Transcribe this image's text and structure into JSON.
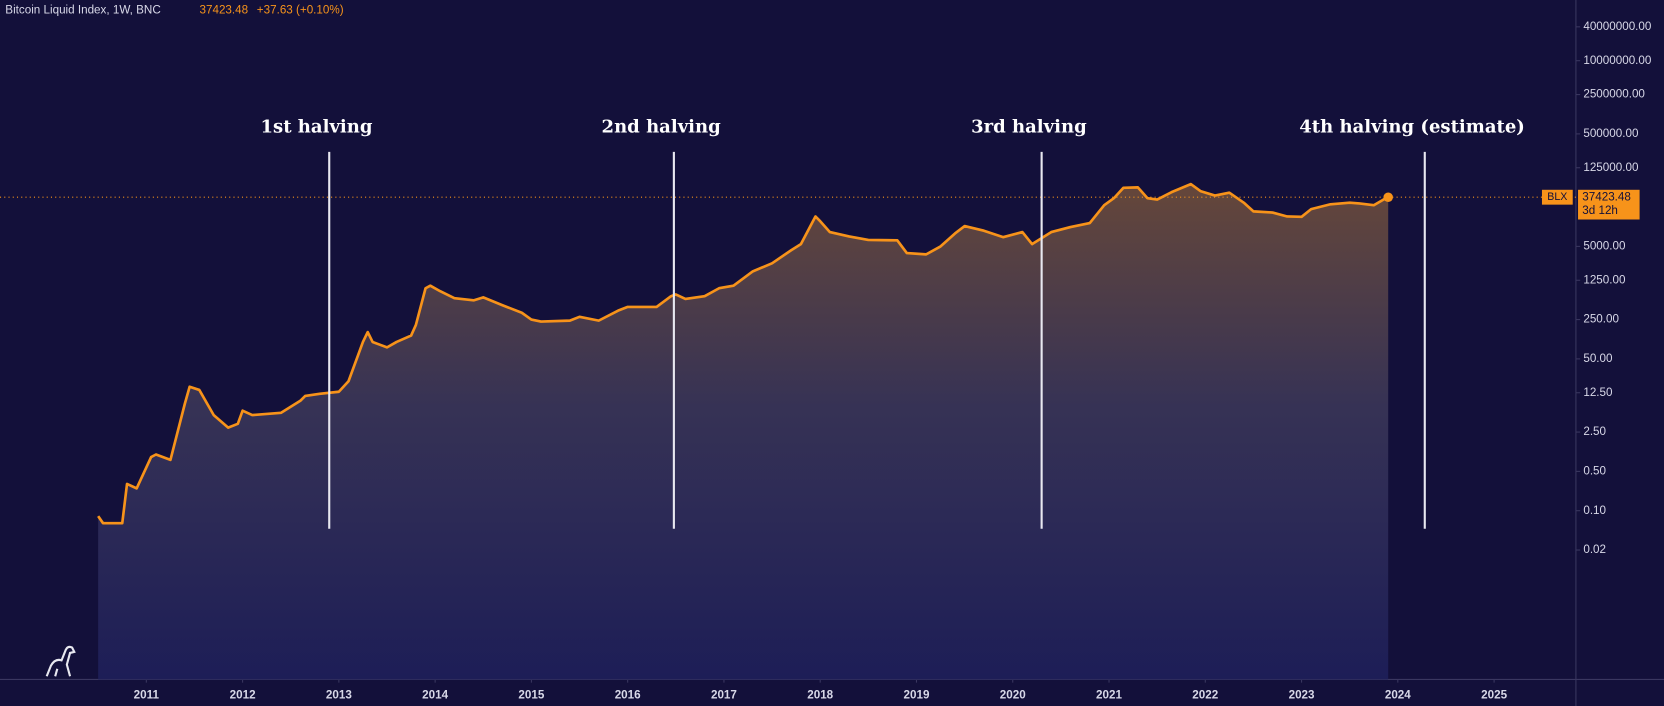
{
  "chart_data": {
    "type": "line",
    "title": "Bitcoin Liquid Index, 1W, BNC",
    "change": "+37.63 (+0.10%)",
    "countdown": "3d 12h",
    "log_scale": true,
    "grid": false,
    "xlim": [
      2009.48,
      2025.85
    ],
    "xticks": [
      2011,
      2012,
      2013,
      2014,
      2015,
      2016,
      2017,
      2018,
      2019,
      2020,
      2021,
      2022,
      2023,
      2024,
      2025
    ],
    "ylim": [
      0.0001,
      120000000
    ],
    "yticks": [
      0.02,
      {
        "value": 0.1,
        "label": "0.10"
      },
      {
        "value": 0.5,
        "label": "0.50"
      },
      {
        "value": 2.5,
        "label": "2.50"
      },
      {
        "value": 12.5,
        "label": "12.50"
      },
      {
        "value": 50,
        "label": "50.00"
      },
      {
        "value": 250,
        "label": "250.00"
      },
      {
        "value": 1250,
        "label": "1250.00"
      },
      {
        "value": 5000,
        "label": "5000.00"
      },
      {
        "value": 125000,
        "label": "125000.00"
      },
      {
        "value": 500000,
        "label": "500000.00"
      },
      {
        "value": 2500000,
        "label": "2500000.00"
      },
      {
        "value": 10000000,
        "label": "10000000.00"
      },
      {
        "value": 40000000,
        "label": "40000000.00"
      }
    ],
    "x": [
      2010.5,
      2010.55,
      2010.75,
      2010.8,
      2010.9,
      2011.05,
      2011.1,
      2011.25,
      2011.4,
      2011.45,
      2011.55,
      2011.7,
      2011.85,
      2011.95,
      2012.0,
      2012.1,
      2012.4,
      2012.6,
      2012.65,
      2012.8,
      2013.0,
      2013.1,
      2013.25,
      2013.3,
      2013.35,
      2013.5,
      2013.6,
      2013.75,
      2013.8,
      2013.9,
      2013.95,
      2014.05,
      2014.2,
      2014.4,
      2014.5,
      2014.7,
      2014.9,
      2015.0,
      2015.1,
      2015.4,
      2015.5,
      2015.7,
      2015.9,
      2016.0,
      2016.3,
      2016.45,
      2016.5,
      2016.6,
      2016.8,
      2016.95,
      2017.1,
      2017.3,
      2017.5,
      2017.7,
      2017.8,
      2017.95,
      2018.0,
      2018.1,
      2018.3,
      2018.5,
      2018.8,
      2018.9,
      2019.1,
      2019.25,
      2019.4,
      2019.5,
      2019.7,
      2019.9,
      2020.1,
      2020.2,
      2020.4,
      2020.6,
      2020.8,
      2020.95,
      2021.05,
      2021.15,
      2021.3,
      2021.4,
      2021.5,
      2021.65,
      2021.85,
      2021.95,
      2022.1,
      2022.25,
      2022.4,
      2022.5,
      2022.7,
      2022.85,
      2023.0,
      2023.1,
      2023.3,
      2023.5,
      2023.6,
      2023.75,
      2023.85,
      2023.9
    ],
    "series": [
      {
        "name": "BLX",
        "color": "#f7931a",
        "values": [
          0.08,
          0.06,
          0.06,
          0.3,
          0.25,
          0.9,
          1.0,
          0.8,
          8,
          16,
          14,
          5,
          3,
          3.5,
          6,
          5,
          5.5,
          9,
          11,
          12,
          13,
          20,
          100,
          150,
          100,
          80,
          100,
          130,
          200,
          900,
          1000,
          800,
          600,
          550,
          620,
          450,
          330,
          250,
          230,
          240,
          280,
          240,
          360,
          420,
          420,
          650,
          700,
          580,
          650,
          900,
          1000,
          1800,
          2500,
          4300,
          5500,
          17000,
          14000,
          9000,
          7500,
          6500,
          6400,
          3800,
          3600,
          5000,
          8500,
          11500,
          9500,
          7300,
          9000,
          5500,
          9000,
          11000,
          13000,
          27000,
          36000,
          55000,
          56000,
          36000,
          34000,
          46000,
          64000,
          48000,
          40000,
          45000,
          30000,
          21000,
          20000,
          17000,
          16800,
          23000,
          28000,
          30000,
          29000,
          27000,
          34000,
          37423.48
        ]
      }
    ],
    "annotations": [
      {
        "text": "1st halving",
        "x": 2012.9
      },
      {
        "text": "2nd halving",
        "x": 2016.48
      },
      {
        "text": "3rd halving",
        "x": 2020.3
      },
      {
        "text": "4th halving (estimate)",
        "x": 2024.28
      }
    ]
  }
}
